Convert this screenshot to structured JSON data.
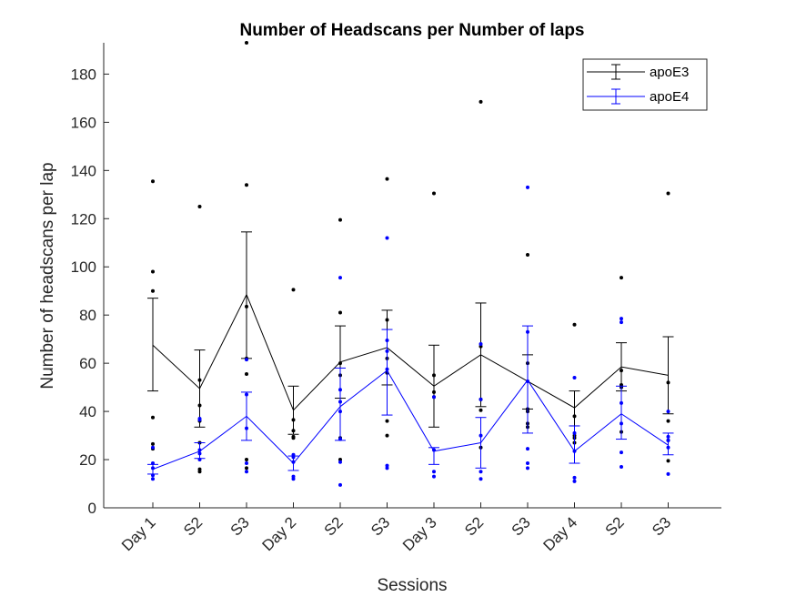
{
  "chart_data": {
    "type": "line",
    "title": "Number of Headscans per Number of laps",
    "xlabel": "Sessions",
    "ylabel": "Number of headscans per lap",
    "categories": [
      "Day 1",
      "S2",
      "S3",
      "Day 2",
      "S2",
      "S3",
      "Day 3",
      "S2",
      "S3",
      "Day 4",
      "S2",
      "S3"
    ],
    "ylim": [
      0,
      193
    ],
    "yticks": [
      0,
      20,
      40,
      60,
      80,
      100,
      120,
      140,
      160,
      180
    ],
    "grid": false,
    "legend_position": "top-right",
    "series": [
      {
        "name": "apoE3",
        "color": "#000000",
        "mean": [
          67.5,
          49.5,
          88.5,
          40.5,
          60.5,
          66.5,
          50.5,
          63.5,
          52.5,
          41.5,
          58.5,
          55.0
        ],
        "error_low": [
          48.5,
          33.5,
          62.0,
          30.5,
          45.5,
          51.0,
          33.5,
          42.0,
          41.0,
          34.0,
          48.5,
          39.0
        ],
        "error_high": [
          87.0,
          65.5,
          114.5,
          50.5,
          75.5,
          82.0,
          67.5,
          85.0,
          63.5,
          48.5,
          68.5,
          71.0
        ],
        "points": [
          [
            135.5,
            98.0,
            90.0,
            37.5,
            26.5,
            24.5
          ],
          [
            125.0,
            53.0,
            42.5,
            36.0,
            27.0,
            16.0,
            15.0
          ],
          [
            193.0,
            134.0,
            83.5,
            62.0,
            55.5,
            20.0,
            16.5
          ],
          [
            90.5,
            36.5,
            32.0,
            29.5,
            29.0
          ],
          [
            119.5,
            81.0,
            60.0,
            55.0,
            29.0,
            20.0
          ],
          [
            136.5,
            78.0,
            62.0,
            56.0,
            36.0,
            30.0
          ],
          [
            130.5,
            55.0,
            48.0,
            46.0
          ],
          [
            168.5,
            67.0,
            45.0,
            40.5,
            25.0
          ],
          [
            105.0,
            60.0,
            41.0,
            40.0,
            35.0,
            33.5
          ],
          [
            76.0,
            38.0,
            30.0,
            29.0,
            27.0
          ],
          [
            95.5,
            57.0,
            51.0,
            50.0,
            31.5
          ],
          [
            130.5,
            52.0,
            36.0,
            28.0,
            19.5
          ]
        ]
      },
      {
        "name": "apoE4",
        "color": "#0000ff",
        "mean": [
          16.0,
          23.5,
          38.0,
          18.5,
          42.0,
          57.0,
          23.5,
          27.0,
          53.0,
          23.5,
          39.0,
          26.0
        ],
        "error_low": [
          14.0,
          20.5,
          28.0,
          15.5,
          28.0,
          38.5,
          18.0,
          16.5,
          31.0,
          18.5,
          28.5,
          22.0
        ],
        "error_high": [
          18.0,
          27.0,
          48.0,
          21.5,
          58.0,
          74.0,
          25.0,
          37.5,
          75.5,
          34.0,
          50.5,
          31.0
        ],
        "points": [
          [
            25.0,
            18.5,
            16.5,
            13.5,
            12.0
          ],
          [
            37.0,
            36.5,
            24.0,
            22.5,
            20.0
          ],
          [
            61.5,
            47.0,
            33.0,
            18.5,
            15.0
          ],
          [
            22.0,
            21.0,
            19.0,
            13.0,
            12.0
          ],
          [
            95.5,
            49.0,
            44.0,
            40.0,
            28.5,
            19.0,
            9.5
          ],
          [
            112.0,
            69.5,
            65.0,
            57.5,
            17.5,
            16.5
          ],
          [
            46.0,
            24.0,
            15.0,
            13.0
          ],
          [
            68.0,
            45.0,
            30.0,
            15.0,
            12.0
          ],
          [
            133.0,
            73.0,
            52.5,
            24.5,
            18.5,
            16.5
          ],
          [
            54.0,
            31.0,
            23.5,
            12.5,
            11.0
          ],
          [
            78.5,
            77.0,
            43.5,
            35.0,
            23.0,
            17.0
          ],
          [
            40.0,
            29.5,
            28.0,
            25.0,
            14.0
          ]
        ]
      }
    ]
  }
}
